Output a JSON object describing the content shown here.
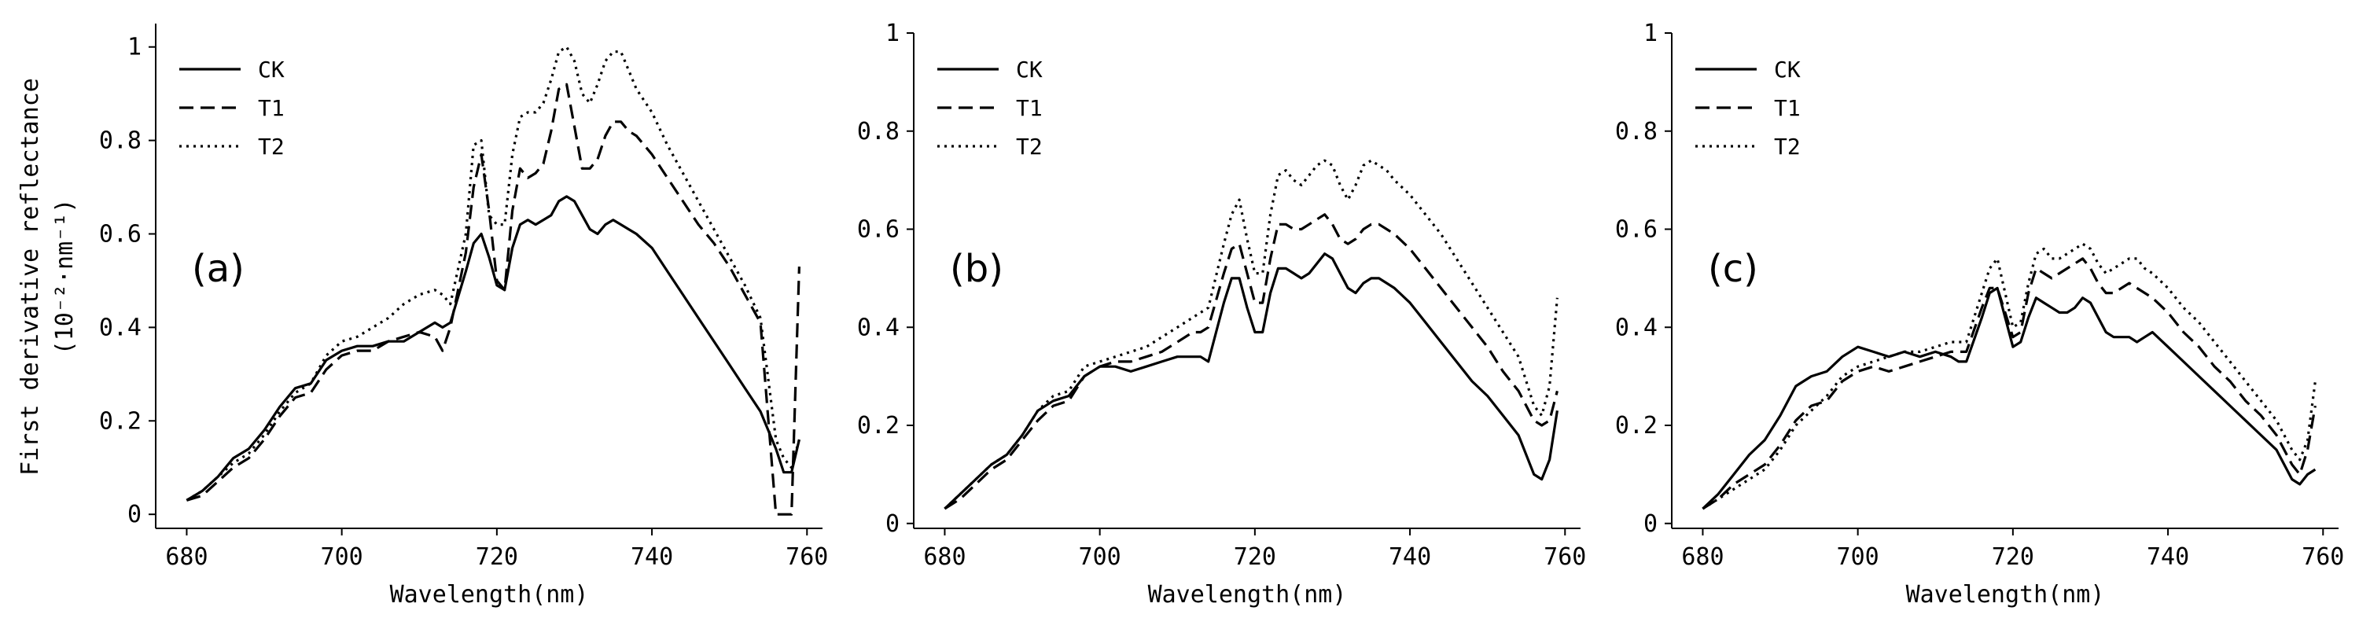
{
  "figure": {
    "ylabel_line1": "First derivative reflectance",
    "ylabel_line2": "(10⁻²·nm⁻¹)"
  },
  "chart_data": [
    {
      "type": "line",
      "panel_label": "(a)",
      "xlabel": "Wavelength(nm)",
      "ylabel": "First derivative reflectance (10⁻²·nm⁻¹)",
      "xlim": [
        676,
        762
      ],
      "ylim": [
        -0.03,
        1.05
      ],
      "x_ticks": [
        680,
        700,
        720,
        740,
        760
      ],
      "y_ticks": [
        0,
        0.2,
        0.4,
        0.6,
        0.8,
        1
      ],
      "y_tick_labels": [
        "0",
        "0.2",
        "0.4",
        "0.6",
        "0.8",
        "1"
      ],
      "legend": "top-left",
      "grid": false,
      "x": [
        680,
        682,
        684,
        686,
        688,
        690,
        692,
        694,
        696,
        698,
        700,
        702,
        704,
        706,
        708,
        710,
        712,
        713,
        714,
        716,
        717,
        718,
        719,
        720,
        721,
        722,
        723,
        724,
        725,
        726,
        727,
        728,
        729,
        730,
        731,
        732,
        733,
        734,
        735,
        736,
        737,
        738,
        740,
        742,
        744,
        746,
        748,
        750,
        752,
        754,
        756,
        757,
        758,
        759
      ],
      "series": [
        {
          "name": "CK",
          "dash": "solid",
          "values": [
            0.03,
            0.05,
            0.08,
            0.12,
            0.14,
            0.18,
            0.23,
            0.27,
            0.28,
            0.33,
            0.35,
            0.36,
            0.36,
            0.37,
            0.37,
            0.39,
            0.41,
            0.4,
            0.41,
            0.52,
            0.58,
            0.6,
            0.55,
            0.49,
            0.48,
            0.57,
            0.62,
            0.63,
            0.62,
            0.63,
            0.64,
            0.67,
            0.68,
            0.67,
            0.64,
            0.61,
            0.6,
            0.62,
            0.63,
            0.62,
            0.61,
            0.6,
            0.57,
            0.52,
            0.47,
            0.42,
            0.37,
            0.32,
            0.27,
            0.22,
            0.14,
            0.09,
            0.09,
            0.16
          ]
        },
        {
          "name": "T1",
          "dash": "dashed",
          "values": [
            0.03,
            0.04,
            0.07,
            0.1,
            0.12,
            0.16,
            0.21,
            0.25,
            0.26,
            0.31,
            0.34,
            0.35,
            0.35,
            0.37,
            0.38,
            0.39,
            0.38,
            0.35,
            0.4,
            0.56,
            0.7,
            0.77,
            0.65,
            0.5,
            0.48,
            0.65,
            0.74,
            0.72,
            0.73,
            0.75,
            0.82,
            0.91,
            0.92,
            0.83,
            0.74,
            0.74,
            0.76,
            0.81,
            0.84,
            0.84,
            0.82,
            0.81,
            0.77,
            0.72,
            0.67,
            0.62,
            0.58,
            0.53,
            0.47,
            0.41,
            0.0,
            0.0,
            0.0,
            0.53
          ]
        },
        {
          "name": "T2",
          "dash": "dotted",
          "values": [
            0.03,
            0.05,
            0.08,
            0.11,
            0.13,
            0.17,
            0.22,
            0.26,
            0.28,
            0.34,
            0.37,
            0.38,
            0.4,
            0.42,
            0.45,
            0.47,
            0.48,
            0.47,
            0.45,
            0.6,
            0.79,
            0.8,
            0.64,
            0.62,
            0.62,
            0.77,
            0.85,
            0.86,
            0.86,
            0.88,
            0.93,
            0.99,
            1.0,
            0.97,
            0.9,
            0.88,
            0.92,
            0.97,
            0.99,
            0.99,
            0.95,
            0.91,
            0.86,
            0.79,
            0.73,
            0.67,
            0.61,
            0.55,
            0.49,
            0.42,
            0.16,
            0.12,
            0.1,
            0.16
          ]
        }
      ]
    },
    {
      "type": "line",
      "panel_label": "(b)",
      "xlabel": "Wavelength(nm)",
      "ylabel": "",
      "xlim": [
        676,
        762
      ],
      "ylim": [
        -0.01,
        1.0
      ],
      "x_ticks": [
        680,
        700,
        720,
        740,
        760
      ],
      "y_ticks": [
        0,
        0.2,
        0.4,
        0.6,
        0.8,
        1
      ],
      "y_tick_labels": [
        "0",
        "0.2",
        "0.4",
        "0.6",
        "0.8",
        "1"
      ],
      "legend": "top-left",
      "grid": false,
      "x": [
        680,
        682,
        684,
        686,
        688,
        690,
        692,
        694,
        696,
        698,
        700,
        702,
        704,
        706,
        708,
        710,
        712,
        713,
        714,
        716,
        717,
        718,
        719,
        720,
        721,
        722,
        723,
        724,
        725,
        726,
        727,
        728,
        729,
        730,
        731,
        732,
        733,
        734,
        735,
        736,
        737,
        738,
        740,
        742,
        744,
        746,
        748,
        750,
        752,
        754,
        756,
        757,
        758,
        759
      ],
      "series": [
        {
          "name": "CK",
          "dash": "solid",
          "values": [
            0.03,
            0.06,
            0.09,
            0.12,
            0.14,
            0.18,
            0.23,
            0.25,
            0.26,
            0.3,
            0.32,
            0.32,
            0.31,
            0.32,
            0.33,
            0.34,
            0.34,
            0.34,
            0.33,
            0.45,
            0.5,
            0.5,
            0.44,
            0.39,
            0.39,
            0.47,
            0.52,
            0.52,
            0.51,
            0.5,
            0.51,
            0.53,
            0.55,
            0.54,
            0.51,
            0.48,
            0.47,
            0.49,
            0.5,
            0.5,
            0.49,
            0.48,
            0.45,
            0.41,
            0.37,
            0.33,
            0.29,
            0.26,
            0.22,
            0.18,
            0.1,
            0.09,
            0.13,
            0.23
          ]
        },
        {
          "name": "T1",
          "dash": "dashed",
          "values": [
            0.03,
            0.05,
            0.08,
            0.11,
            0.13,
            0.17,
            0.21,
            0.24,
            0.25,
            0.3,
            0.32,
            0.33,
            0.33,
            0.34,
            0.35,
            0.37,
            0.39,
            0.39,
            0.4,
            0.51,
            0.56,
            0.57,
            0.51,
            0.45,
            0.45,
            0.54,
            0.61,
            0.61,
            0.6,
            0.6,
            0.61,
            0.62,
            0.63,
            0.61,
            0.58,
            0.57,
            0.58,
            0.6,
            0.61,
            0.61,
            0.6,
            0.59,
            0.56,
            0.52,
            0.48,
            0.44,
            0.4,
            0.36,
            0.31,
            0.27,
            0.21,
            0.2,
            0.21,
            0.27
          ]
        },
        {
          "name": "T2",
          "dash": "dotted",
          "values": [
            0.03,
            0.06,
            0.09,
            0.12,
            0.14,
            0.18,
            0.23,
            0.26,
            0.27,
            0.32,
            0.33,
            0.34,
            0.35,
            0.36,
            0.38,
            0.4,
            0.42,
            0.43,
            0.44,
            0.57,
            0.63,
            0.66,
            0.58,
            0.51,
            0.51,
            0.63,
            0.71,
            0.72,
            0.7,
            0.69,
            0.71,
            0.73,
            0.74,
            0.73,
            0.69,
            0.66,
            0.69,
            0.73,
            0.74,
            0.73,
            0.72,
            0.7,
            0.67,
            0.63,
            0.59,
            0.54,
            0.49,
            0.44,
            0.39,
            0.34,
            0.24,
            0.22,
            0.28,
            0.46
          ]
        }
      ]
    },
    {
      "type": "line",
      "panel_label": "(c)",
      "xlabel": "Wavelength(nm)",
      "ylabel": "",
      "xlim": [
        676,
        762
      ],
      "ylim": [
        -0.01,
        1.0
      ],
      "x_ticks": [
        680,
        700,
        720,
        740,
        760
      ],
      "y_ticks": [
        0,
        0.2,
        0.4,
        0.6,
        0.8,
        1
      ],
      "y_tick_labels": [
        "0",
        "0.2",
        "0.4",
        "0.6",
        "0.8",
        "1"
      ],
      "legend": "top-left",
      "grid": false,
      "x": [
        680,
        682,
        684,
        686,
        688,
        690,
        692,
        694,
        696,
        698,
        700,
        702,
        704,
        706,
        708,
        710,
        712,
        713,
        714,
        716,
        717,
        718,
        719,
        720,
        721,
        722,
        723,
        724,
        725,
        726,
        727,
        728,
        729,
        730,
        731,
        732,
        733,
        734,
        735,
        736,
        737,
        738,
        740,
        742,
        744,
        746,
        748,
        750,
        752,
        754,
        756,
        757,
        758,
        759
      ],
      "series": [
        {
          "name": "CK",
          "dash": "solid",
          "values": [
            0.03,
            0.06,
            0.1,
            0.14,
            0.17,
            0.22,
            0.28,
            0.3,
            0.31,
            0.34,
            0.36,
            0.35,
            0.34,
            0.35,
            0.34,
            0.35,
            0.34,
            0.33,
            0.33,
            0.42,
            0.47,
            0.48,
            0.42,
            0.36,
            0.37,
            0.42,
            0.46,
            0.45,
            0.44,
            0.43,
            0.43,
            0.44,
            0.46,
            0.45,
            0.42,
            0.39,
            0.38,
            0.38,
            0.38,
            0.37,
            0.38,
            0.39,
            0.36,
            0.33,
            0.3,
            0.27,
            0.24,
            0.21,
            0.18,
            0.15,
            0.09,
            0.08,
            0.1,
            0.11
          ]
        },
        {
          "name": "T1",
          "dash": "dashed",
          "values": [
            0.03,
            0.05,
            0.08,
            0.1,
            0.12,
            0.16,
            0.21,
            0.24,
            0.25,
            0.29,
            0.31,
            0.32,
            0.31,
            0.32,
            0.33,
            0.34,
            0.35,
            0.35,
            0.35,
            0.44,
            0.48,
            0.48,
            0.43,
            0.38,
            0.39,
            0.47,
            0.52,
            0.51,
            0.5,
            0.51,
            0.52,
            0.53,
            0.54,
            0.52,
            0.49,
            0.47,
            0.47,
            0.48,
            0.49,
            0.48,
            0.47,
            0.46,
            0.43,
            0.39,
            0.36,
            0.32,
            0.29,
            0.25,
            0.22,
            0.18,
            0.12,
            0.1,
            0.15,
            0.24
          ]
        },
        {
          "name": "T2",
          "dash": "dotted",
          "values": [
            0.03,
            0.05,
            0.07,
            0.09,
            0.11,
            0.15,
            0.2,
            0.23,
            0.26,
            0.3,
            0.32,
            0.33,
            0.34,
            0.35,
            0.35,
            0.36,
            0.37,
            0.37,
            0.37,
            0.47,
            0.52,
            0.54,
            0.47,
            0.4,
            0.41,
            0.49,
            0.55,
            0.56,
            0.54,
            0.54,
            0.55,
            0.56,
            0.57,
            0.56,
            0.53,
            0.51,
            0.52,
            0.53,
            0.54,
            0.54,
            0.52,
            0.51,
            0.48,
            0.44,
            0.41,
            0.37,
            0.33,
            0.29,
            0.25,
            0.21,
            0.15,
            0.13,
            0.17,
            0.29
          ]
        }
      ]
    }
  ]
}
